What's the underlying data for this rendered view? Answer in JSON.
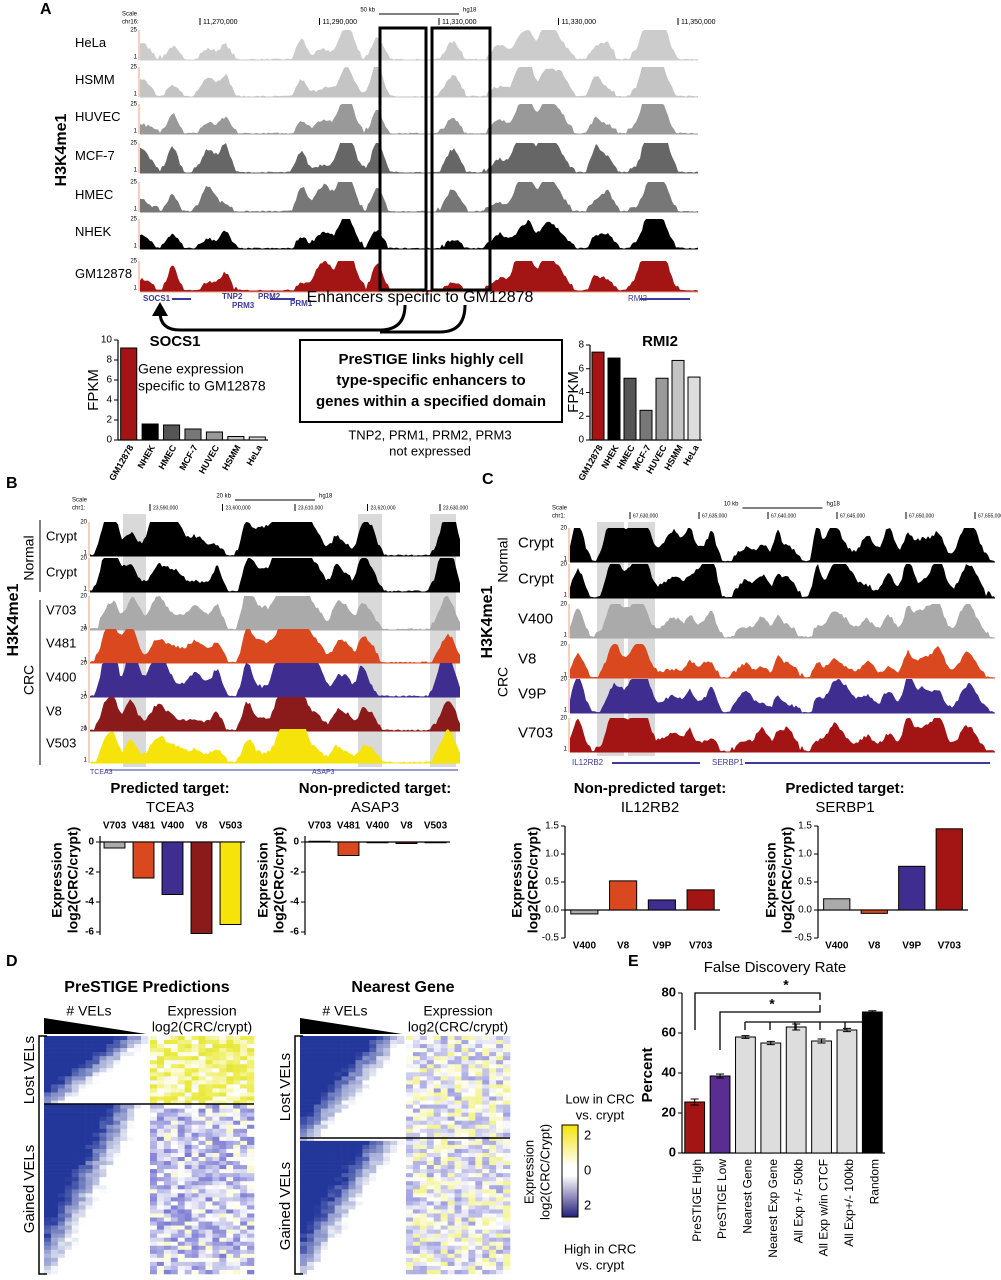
{
  "panel_a": {
    "label": "A",
    "ylabel": "H3K4me1",
    "scale": "Scale",
    "chrom": "chr16:",
    "scalebar": "50 kb",
    "genome": "hg18",
    "coords": [
      "11,270,000",
      "11,290,000",
      "11,310,000",
      "11,330,000",
      "11,350,000"
    ],
    "track_top": "25",
    "track_bottom": "1",
    "tracks": [
      "HeLa",
      "HSMM",
      "HUVEC",
      "MCF-7",
      "HMEC",
      "NHEK",
      "GM12878"
    ],
    "track_colors": [
      "#cccccc",
      "#c4c4c4",
      "#999999",
      "#666666",
      "#777777",
      "#000000",
      "#a31515"
    ],
    "genes": [
      "SOCS1",
      "TNP2",
      "PRM3",
      "PRM2",
      "PRM1",
      "RMI2"
    ],
    "enhancer_note": "Enhancers specific to GM12878",
    "summary": [
      "PreSTIGE links highly cell",
      "type-specific enhancers to",
      "genes within a specified domain"
    ],
    "not_expressed": [
      "TNP2, PRM1, PRM2, PRM3",
      "not expressed"
    ],
    "charts": [
      {
        "title": "SOCS1",
        "ylabel": "FPKM",
        "note": [
          "Gene expression",
          "specific to GM12878"
        ],
        "categories": [
          "GM12878",
          "NHEK",
          "HMEC",
          "MCF-7",
          "HUVEC",
          "HSMM",
          "HeLa"
        ],
        "values": [
          9.2,
          1.6,
          1.5,
          1.1,
          0.8,
          0.35,
          0.3
        ],
        "colors": [
          "#a31515",
          "#000000",
          "#555555",
          "#777777",
          "#999999",
          "#c4c4c4",
          "#dddddd"
        ],
        "ylim": [
          0,
          10
        ],
        "yticks": [
          0,
          2,
          4,
          6,
          8,
          10
        ]
      },
      {
        "title": "RMI2",
        "ylabel": "FPKM",
        "categories": [
          "GM12878",
          "NHEK",
          "HMEC",
          "MCF-7",
          "HUVEC",
          "HSMM",
          "HeLa"
        ],
        "values": [
          7.4,
          6.9,
          5.2,
          2.5,
          5.2,
          6.7,
          5.3
        ],
        "colors": [
          "#a31515",
          "#000000",
          "#555555",
          "#777777",
          "#999999",
          "#c4c4c4",
          "#dddddd"
        ],
        "ylim": [
          0,
          8
        ],
        "yticks": [
          0,
          2,
          4,
          6,
          8
        ]
      }
    ]
  },
  "panel_b": {
    "label": "B",
    "ylabel": "H3K4me1",
    "groups": [
      "Normal",
      "CRC"
    ],
    "scale": "Scale",
    "chrom": "chr1:",
    "scalebar": "20 kb",
    "genome": "hg18",
    "coords": [
      "23,590,000",
      "23,600,000",
      "23,610,000",
      "23,620,000",
      "23,630,000"
    ],
    "track_top": "20",
    "track_bottom": "1",
    "tracks": [
      "Crypt",
      "Crypt",
      "V703",
      "V481",
      "V400",
      "V8",
      "V503"
    ],
    "track_colors": [
      "#000000",
      "#000000",
      "#aaaaaa",
      "#d9481e",
      "#3f2d8f",
      "#8b1a1a",
      "#f5e30a"
    ],
    "genes": [
      "TCEA3",
      "ASAP3"
    ],
    "targets": [
      {
        "kind": "Predicted target:",
        "gene": "TCEA3"
      },
      {
        "kind": "Non-predicted target:",
        "gene": "ASAP3"
      }
    ],
    "charts": [
      {
        "ylabel": [
          "Expression",
          "log2(CRC/crypt)"
        ],
        "categories": [
          "V703",
          "V481",
          "V400",
          "V8",
          "V503"
        ],
        "values": [
          -0.4,
          -2.4,
          -3.5,
          -6.1,
          -5.5
        ],
        "colors": [
          "#aaaaaa",
          "#d9481e",
          "#3f2d8f",
          "#8b1a1a",
          "#f5e30a"
        ],
        "ylim": [
          -6.2,
          0.4
        ],
        "yticks": [
          0,
          -2,
          -4,
          -6
        ]
      },
      {
        "ylabel": [
          "Expression",
          "log2(CRC/crypt)"
        ],
        "categories": [
          "V703",
          "V481",
          "V400",
          "V8",
          "V503"
        ],
        "values": [
          0.05,
          -0.9,
          -0.05,
          -0.1,
          -0.05
        ],
        "colors": [
          "#aaaaaa",
          "#d9481e",
          "#3f2d8f",
          "#8b1a1a",
          "#f5e30a"
        ],
        "ylim": [
          -6.2,
          0.4
        ],
        "yticks": [
          0,
          -2,
          -4,
          -6
        ]
      }
    ]
  },
  "panel_c": {
    "label": "C",
    "ylabel": "H3K4me1",
    "groups": [
      "Normal",
      "CRC"
    ],
    "scale": "Scale",
    "chrom": "chr1:",
    "scalebar": "10 kb",
    "genome": "hg18",
    "coords": [
      "67,630,000",
      "67,635,000",
      "67,640,000",
      "67,645,000",
      "67,650,000",
      "67,655,000"
    ],
    "track_top": "20",
    "track_bottom": "1",
    "tracks": [
      "Crypt",
      "Crypt",
      "V400",
      "V8",
      "V9P",
      "V703"
    ],
    "track_colors": [
      "#000000",
      "#000000",
      "#aaaaaa",
      "#d9481e",
      "#3f2d8f",
      "#a31515"
    ],
    "genes": [
      "IL12RB2",
      "SERBP1"
    ],
    "targets": [
      {
        "kind": "Non-predicted target:",
        "gene": "IL12RB2"
      },
      {
        "kind": "Predicted target:",
        "gene": "SERBP1"
      }
    ],
    "charts": [
      {
        "ylabel": [
          "Expression",
          "log2(CRC/crypt)"
        ],
        "categories": [
          "V400",
          "V8",
          "V9P",
          "V703"
        ],
        "values": [
          -0.07,
          0.52,
          0.18,
          0.36
        ],
        "colors": [
          "#aaaaaa",
          "#d9481e",
          "#3f2d8f",
          "#a31515"
        ],
        "ylim": [
          -0.5,
          1.5
        ],
        "yticks": [
          -0.5,
          {
            "value": 0,
            "label": "0.0"
          },
          0.5,
          {
            "value": 1,
            "label": "1.0"
          },
          1.5
        ]
      },
      {
        "ylabel": [
          "Expression",
          "log2(CRC/crypt)"
        ],
        "categories": [
          "V400",
          "V8",
          "V9P",
          "V703"
        ],
        "values": [
          0.2,
          -0.06,
          0.78,
          1.45
        ],
        "colors": [
          "#aaaaaa",
          "#d9481e",
          "#3f2d8f",
          "#a31515"
        ],
        "ylim": [
          -0.5,
          1.5
        ],
        "yticks": [
          -0.5,
          {
            "value": 0,
            "label": "0.0"
          },
          0.5,
          {
            "value": 1,
            "label": "1.0"
          },
          1.5
        ]
      }
    ]
  },
  "panel_d": {
    "label": "D",
    "titles": [
      "PreSTIGE Predictions",
      "Nearest Gene"
    ],
    "vels": "# VELs",
    "expression": [
      "Expression",
      "log2(CRC/crypt)"
    ],
    "rows": [
      "Lost VELs",
      "Gained VELs"
    ],
    "legend": {
      "low": [
        "Low in CRC",
        "vs. crypt"
      ],
      "high": [
        "High in CRC",
        "vs. crypt"
      ],
      "title": [
        "Expression",
        "log2(CRC/Crypt)"
      ],
      "ticks": [
        "2",
        "0",
        "2"
      ]
    }
  },
  "panel_e": {
    "label": "E",
    "title": "False Discovery Rate",
    "ylabel": "Percent",
    "categories": [
      "PreSTIGE High",
      "PreSTIGE Low",
      "Nearest  Gene",
      "Nearest Exp Gene",
      "All Exp +/- 50kb",
      "All Exp w/in CTCF",
      "All Exp+/- 100kb",
      "Random"
    ],
    "values": [
      25.5,
      38.5,
      58,
      55,
      63,
      56,
      61.5,
      70.5
    ],
    "errors": [
      1.5,
      1,
      0.7,
      0.8,
      1.5,
      1,
      0.8,
      0.6
    ],
    "colors": [
      "#a31515",
      "#5a2d91",
      "#dddddd",
      "#dddddd",
      "#dddddd",
      "#dddddd",
      "#dddddd",
      "#000000"
    ],
    "ylim": [
      0,
      80
    ],
    "yticks": [
      0,
      20,
      40,
      60,
      80
    ],
    "annotations": [
      "*",
      "*"
    ]
  }
}
